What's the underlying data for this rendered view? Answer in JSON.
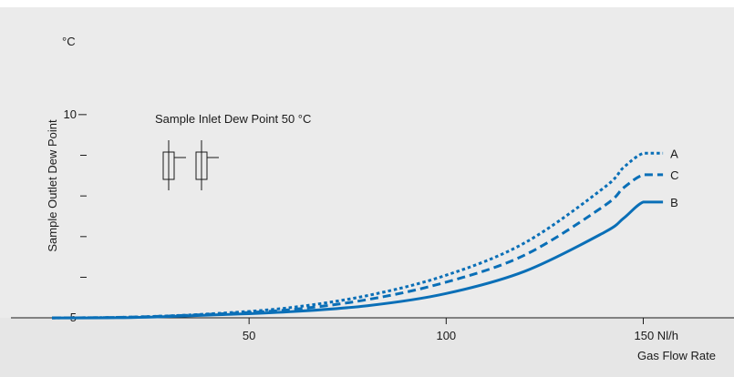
{
  "colors": {
    "plot_bg": "#ebebeb",
    "axis_bg": "#e6e6e6",
    "series": "#0a6fb7",
    "text": "#1a1a1a"
  },
  "chart_data": {
    "type": "line",
    "title": "",
    "xlabel": "Gas Flow Rate",
    "ylabel": "Sample Outlet Dew Point",
    "y_unit_label": "°C",
    "annotation": "Sample Inlet Dew Point 50 °C",
    "xlim": [
      0,
      167
    ],
    "ylim": [
      4.6,
      11.9
    ],
    "x_ticks": [
      {
        "value": 50,
        "label": "50"
      },
      {
        "value": 100,
        "label": "100"
      },
      {
        "value": 150,
        "label": "150 Nl/h"
      }
    ],
    "y_ticks": [
      {
        "value": 5,
        "label": "5"
      },
      {
        "value": 6,
        "label": ""
      },
      {
        "value": 7,
        "label": ""
      },
      {
        "value": 8,
        "label": ""
      },
      {
        "value": 9,
        "label": ""
      },
      {
        "value": 10,
        "label": "10"
      }
    ],
    "grid": false,
    "series": [
      {
        "name": "A",
        "dash": "dotted",
        "x": [
          0,
          20,
          40,
          60,
          80,
          100,
          120,
          140,
          145,
          150,
          155
        ],
        "y": [
          5.0,
          5.02,
          5.1,
          5.25,
          5.55,
          6.05,
          6.85,
          8.2,
          8.7,
          9.05,
          9.05
        ]
      },
      {
        "name": "C",
        "dash": "dashed",
        "x": [
          0,
          20,
          40,
          60,
          80,
          100,
          120,
          140,
          145,
          150,
          155
        ],
        "y": [
          5.0,
          5.02,
          5.09,
          5.2,
          5.45,
          5.88,
          6.55,
          7.75,
          8.2,
          8.52,
          8.52
        ]
      },
      {
        "name": "B",
        "dash": "solid",
        "x": [
          0,
          20,
          40,
          60,
          80,
          100,
          120,
          140,
          145,
          150,
          155
        ],
        "y": [
          5.0,
          5.01,
          5.07,
          5.15,
          5.3,
          5.6,
          6.15,
          7.1,
          7.45,
          7.85,
          7.85
        ]
      }
    ]
  }
}
